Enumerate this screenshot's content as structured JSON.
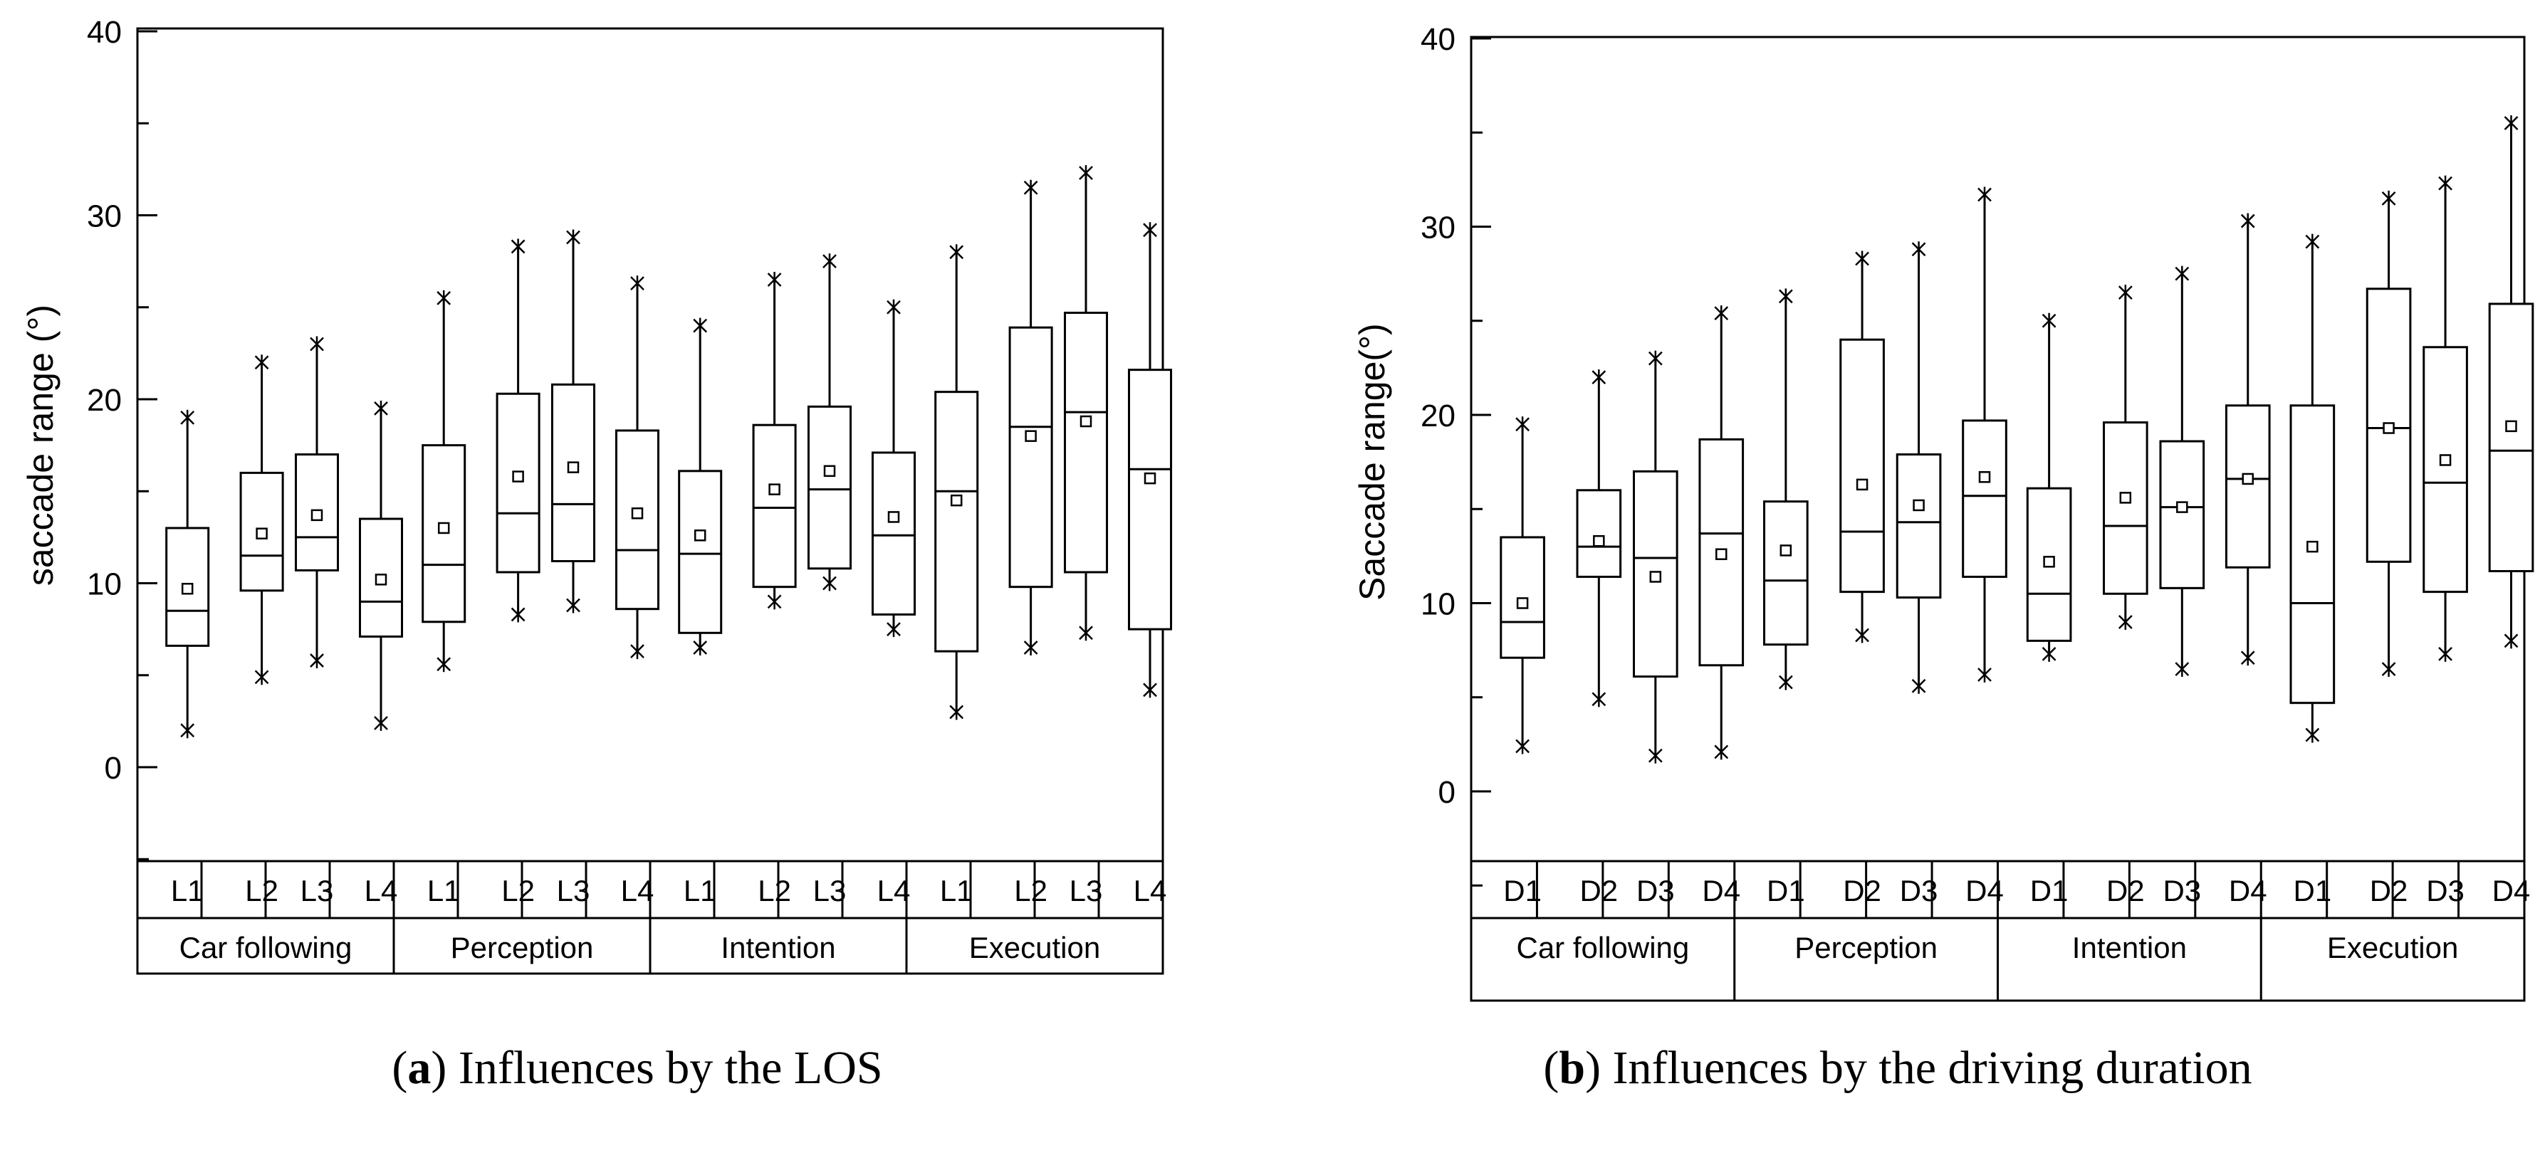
{
  "chart_data": [
    {
      "type": "box",
      "caption_label": "a",
      "caption_text": "Influences by the LOS",
      "ylabel": "saccade range (°)",
      "ylim": [
        -5,
        40
      ],
      "yticks": [
        0,
        10,
        20,
        30,
        40
      ],
      "groups": [
        {
          "name": "Car following",
          "boxes": [
            {
              "label": "L1",
              "min": 2.0,
              "q1": 6.6,
              "median": 8.5,
              "q3": 13.0,
              "max": 19.0,
              "mean": 9.7
            },
            {
              "label": "L2",
              "min": 4.9,
              "q1": 9.6,
              "median": 11.5,
              "q3": 16.0,
              "max": 22.0,
              "mean": 12.7
            },
            {
              "label": "L3",
              "min": 5.8,
              "q1": 10.7,
              "median": 12.5,
              "q3": 17.0,
              "max": 23.0,
              "mean": 13.7
            },
            {
              "label": "L4",
              "min": 2.4,
              "q1": 7.1,
              "median": 9.0,
              "q3": 13.5,
              "max": 19.5,
              "mean": 10.2
            }
          ]
        },
        {
          "name": "Perception",
          "boxes": [
            {
              "label": "L1",
              "min": 5.6,
              "q1": 7.9,
              "median": 11.0,
              "q3": 17.5,
              "max": 25.5,
              "mean": 13.0
            },
            {
              "label": "L2",
              "min": 8.3,
              "q1": 10.6,
              "median": 13.8,
              "q3": 20.3,
              "max": 28.3,
              "mean": 15.8
            },
            {
              "label": "L3",
              "min": 8.8,
              "q1": 11.2,
              "median": 14.3,
              "q3": 20.8,
              "max": 28.8,
              "mean": 16.3
            },
            {
              "label": "L4",
              "min": 6.3,
              "q1": 8.6,
              "median": 11.8,
              "q3": 18.3,
              "max": 26.3,
              "mean": 13.8
            }
          ]
        },
        {
          "name": "Intention",
          "boxes": [
            {
              "label": "L1",
              "min": 6.5,
              "q1": 7.3,
              "median": 11.6,
              "q3": 16.1,
              "max": 24.0,
              "mean": 12.6
            },
            {
              "label": "L2",
              "min": 9.0,
              "q1": 9.8,
              "median": 14.1,
              "q3": 18.6,
              "max": 26.5,
              "mean": 15.1
            },
            {
              "label": "L3",
              "min": 10.0,
              "q1": 10.8,
              "median": 15.1,
              "q3": 19.6,
              "max": 27.5,
              "mean": 16.1
            },
            {
              "label": "L4",
              "min": 7.5,
              "q1": 8.3,
              "median": 12.6,
              "q3": 17.1,
              "max": 25.0,
              "mean": 13.6
            }
          ]
        },
        {
          "name": "Execution",
          "boxes": [
            {
              "label": "L1",
              "min": 3.0,
              "q1": 6.3,
              "median": 15.0,
              "q3": 20.4,
              "max": 28.0,
              "mean": 14.5
            },
            {
              "label": "L2",
              "min": 6.5,
              "q1": 9.8,
              "median": 18.5,
              "q3": 23.9,
              "max": 31.5,
              "mean": 18.0
            },
            {
              "label": "L3",
              "min": 7.3,
              "q1": 10.6,
              "median": 19.3,
              "q3": 24.7,
              "max": 32.3,
              "mean": 18.8
            },
            {
              "label": "L4",
              "min": 4.2,
              "q1": 7.5,
              "median": 16.2,
              "q3": 21.6,
              "max": 29.2,
              "mean": 15.7
            }
          ]
        }
      ]
    },
    {
      "type": "box",
      "caption_label": "b",
      "caption_text": "Influences by the driving duration",
      "ylabel": "Saccade range(°)",
      "ylim": [
        -5,
        40
      ],
      "yticks": [
        0,
        10,
        20,
        30,
        40
      ],
      "groups": [
        {
          "name": "Car following",
          "boxes": [
            {
              "label": "D1",
              "min": 2.4,
              "q1": 7.1,
              "median": 9.0,
              "q3": 13.5,
              "max": 19.5,
              "mean": 10.0
            },
            {
              "label": "D2",
              "min": 4.9,
              "q1": 11.4,
              "median": 13.0,
              "q3": 16.0,
              "max": 22.0,
              "mean": 13.3
            },
            {
              "label": "D3",
              "min": 1.9,
              "q1": 6.1,
              "median": 12.4,
              "q3": 17.0,
              "max": 23.0,
              "mean": 11.4
            },
            {
              "label": "D4",
              "min": 2.1,
              "q1": 6.7,
              "median": 13.7,
              "q3": 18.7,
              "max": 25.4,
              "mean": 12.6
            }
          ]
        },
        {
          "name": "Perception",
          "boxes": [
            {
              "label": "D1",
              "min": 5.8,
              "q1": 7.8,
              "median": 11.2,
              "q3": 15.4,
              "max": 26.3,
              "mean": 12.8
            },
            {
              "label": "D2",
              "min": 8.3,
              "q1": 10.6,
              "median": 13.8,
              "q3": 24.0,
              "max": 28.3,
              "mean": 16.3
            },
            {
              "label": "D3",
              "min": 5.6,
              "q1": 10.3,
              "median": 14.3,
              "q3": 17.9,
              "max": 28.8,
              "mean": 15.2
            },
            {
              "label": "D4",
              "min": 6.2,
              "q1": 11.4,
              "median": 15.7,
              "q3": 19.7,
              "max": 31.7,
              "mean": 16.7
            }
          ]
        },
        {
          "name": "Intention",
          "boxes": [
            {
              "label": "D1",
              "min": 7.3,
              "q1": 8.0,
              "median": 10.5,
              "q3": 16.1,
              "max": 25.0,
              "mean": 12.2
            },
            {
              "label": "D2",
              "min": 9.0,
              "q1": 10.5,
              "median": 14.1,
              "q3": 19.6,
              "max": 26.5,
              "mean": 15.6
            },
            {
              "label": "D3",
              "min": 6.5,
              "q1": 10.8,
              "median": 15.1,
              "q3": 18.6,
              "max": 27.5,
              "mean": 15.1
            },
            {
              "label": "D4",
              "min": 7.1,
              "q1": 11.9,
              "median": 16.6,
              "q3": 20.5,
              "max": 30.3,
              "mean": 16.6
            }
          ]
        },
        {
          "name": "Execution",
          "boxes": [
            {
              "label": "D1",
              "min": 3.0,
              "q1": 4.7,
              "median": 10.0,
              "q3": 20.5,
              "max": 29.2,
              "mean": 13.0
            },
            {
              "label": "D2",
              "min": 6.5,
              "q1": 12.2,
              "median": 19.3,
              "q3": 26.7,
              "max": 31.5,
              "mean": 19.3
            },
            {
              "label": "D3",
              "min": 7.3,
              "q1": 10.6,
              "median": 16.4,
              "q3": 23.6,
              "max": 32.3,
              "mean": 17.6
            },
            {
              "label": "D4",
              "min": 8.0,
              "q1": 11.7,
              "median": 18.1,
              "q3": 25.9,
              "max": 35.5,
              "mean": 19.4
            }
          ]
        }
      ]
    }
  ]
}
